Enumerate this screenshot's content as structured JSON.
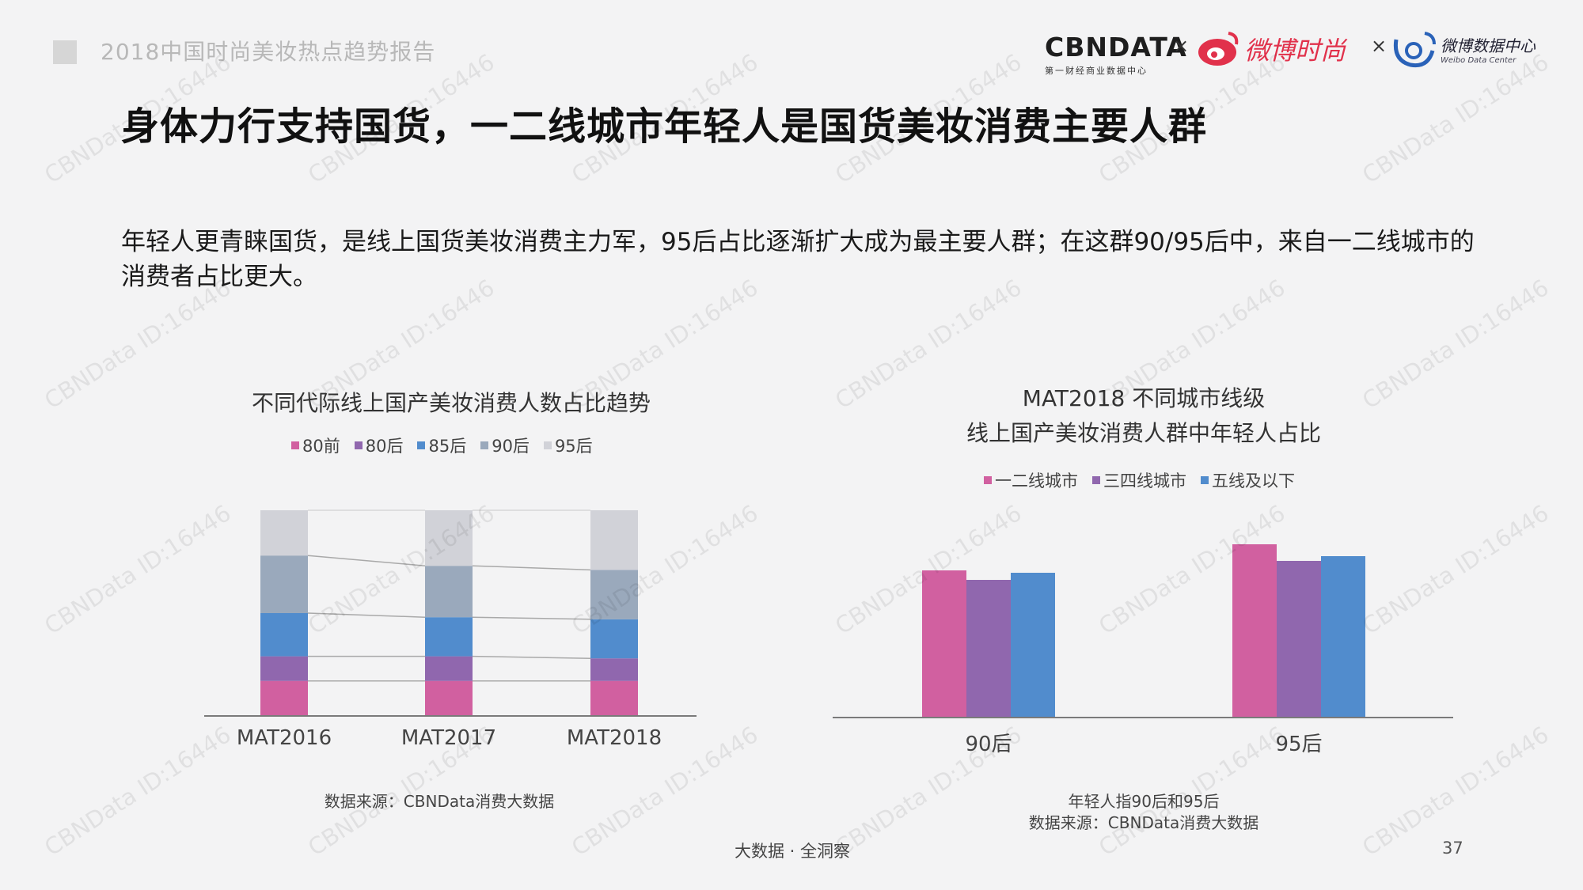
{
  "header": {
    "report_title": "2018中国时尚美妆热点趋势报告"
  },
  "logos": {
    "cbn_main": "CBNDATA",
    "cbn_sub": "第一财经商业数据中心",
    "times": "×",
    "weibo_fashion": "微博时尚",
    "weibo_data": "微博数据中心",
    "weibo_data_en": "Weibo Data Center"
  },
  "title": "身体力行支持国货，一二线城市年轻人是国货美妆消费主要人群",
  "description": "年轻人更青睐国货，是线上国货美妆消费主力军，95后占比逐渐扩大成为最主要人群；在这群90/95后中，来自一二线城市的消费者占比更大。",
  "chart_data": [
    {
      "type": "bar",
      "stacked": true,
      "percent_stacked": true,
      "title": "不同代际线上国产美妆消费人数占比趋势",
      "categories": [
        "MAT2016",
        "MAT2017",
        "MAT2018"
      ],
      "legend_position": "top",
      "grid": false,
      "ylim": [
        0,
        100
      ],
      "series": [
        {
          "name": "80前",
          "color": "#d160a0",
          "values": [
            17,
            17,
            17
          ]
        },
        {
          "name": "80后",
          "color": "#9067ae",
          "values": [
            12,
            12,
            11
          ]
        },
        {
          "name": "85后",
          "color": "#518ccd",
          "values": [
            21,
            19,
            19
          ]
        },
        {
          "name": "90后",
          "color": "#9aa9bc",
          "values": [
            28,
            25,
            24
          ]
        },
        {
          "name": "95后",
          "color": "#d1d2d8",
          "values": [
            22,
            27,
            29
          ]
        }
      ],
      "source": "数据来源：CBNData消费大数据"
    },
    {
      "type": "bar",
      "title_lines": [
        "MAT2018 不同城市线级",
        "线上国产美妆消费人群中年轻人占比"
      ],
      "categories": [
        "90后",
        "95后"
      ],
      "legend_position": "top",
      "grid": false,
      "ylim": [
        0,
        100
      ],
      "series": [
        {
          "name": "一二线城市",
          "color": "#d160a0",
          "values": [
            62,
            73
          ]
        },
        {
          "name": "三四线城市",
          "color": "#9067ae",
          "values": [
            58,
            66
          ]
        },
        {
          "name": "五线及以下",
          "color": "#518ccd",
          "values": [
            61,
            68
          ]
        }
      ],
      "note": "年轻人指90后和95后",
      "source": "数据来源：CBNData消费大数据"
    }
  ],
  "footer": {
    "tagline": "大数据 · 全洞察",
    "page": "37"
  },
  "watermark": "CBNData ID:16446"
}
